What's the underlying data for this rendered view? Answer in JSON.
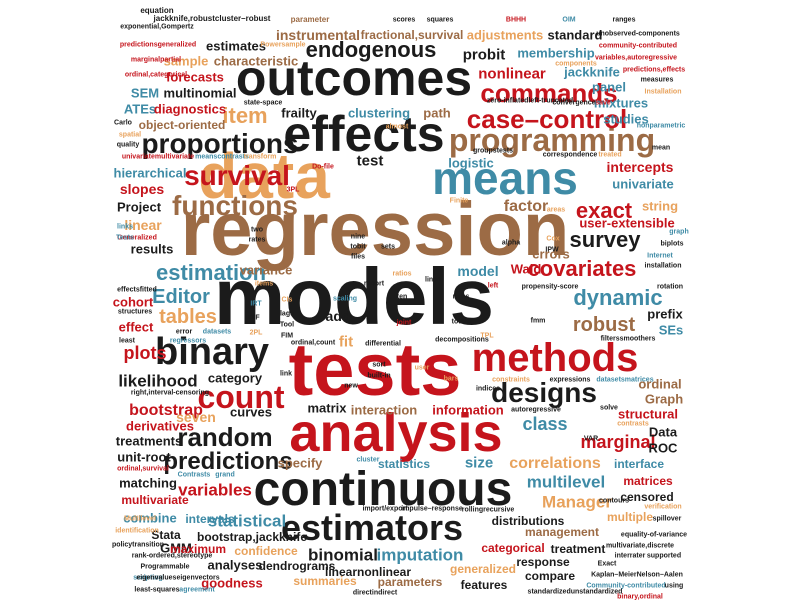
{
  "colors": {
    "black": "#1b1b1b",
    "red": "#c5141c",
    "orange": "#e8a25c",
    "brown": "#9c6b45",
    "teal": "#3f8ba6"
  },
  "words": [
    {
      "text": "models",
      "color": "black"
    },
    {
      "text": "regression",
      "color": "brown"
    },
    {
      "text": "tests",
      "color": "red"
    },
    {
      "text": "data",
      "color": "orange"
    },
    {
      "text": "outcomes",
      "color": "black"
    },
    {
      "text": "effects",
      "color": "black"
    },
    {
      "text": "analysis",
      "color": "red"
    },
    {
      "text": "continuous",
      "color": "black"
    },
    {
      "text": "means",
      "color": "teal"
    },
    {
      "text": "methods",
      "color": "red"
    },
    {
      "text": "programming",
      "color": "brown"
    },
    {
      "text": "binary",
      "color": "black"
    },
    {
      "text": "estimators",
      "color": "black"
    },
    {
      "text": "count",
      "color": "red"
    },
    {
      "text": "endogenous",
      "color": "black"
    },
    {
      "text": "commands",
      "color": "red"
    },
    {
      "text": "proportions",
      "color": "black"
    },
    {
      "text": "survival",
      "color": "red"
    },
    {
      "text": "functions",
      "color": "brown"
    },
    {
      "text": "case–control",
      "color": "red"
    },
    {
      "text": "designs",
      "color": "black"
    },
    {
      "text": "random",
      "color": "black"
    },
    {
      "text": "predictions",
      "color": "black"
    },
    {
      "text": "covariates",
      "color": "red"
    },
    {
      "text": "estimation",
      "color": "teal"
    },
    {
      "text": "survey",
      "color": "black"
    },
    {
      "text": "exact",
      "color": "red"
    },
    {
      "text": "dynamic",
      "color": "teal"
    },
    {
      "text": "robust",
      "color": "brown"
    },
    {
      "text": "Editor",
      "color": "teal"
    },
    {
      "text": "tables",
      "color": "orange"
    },
    {
      "text": "variables",
      "color": "red"
    },
    {
      "text": "statistical",
      "color": "teal"
    },
    {
      "text": "correlations",
      "color": "orange"
    },
    {
      "text": "multilevel",
      "color": "teal"
    },
    {
      "text": "Manager",
      "color": "orange"
    },
    {
      "text": "marginal",
      "color": "red"
    },
    {
      "text": "imputation",
      "color": "teal"
    },
    {
      "text": "binomial",
      "color": "black"
    },
    {
      "text": "bootstrap",
      "color": "red"
    },
    {
      "text": "likelihood",
      "color": "black"
    },
    {
      "text": "plots",
      "color": "red"
    },
    {
      "text": "class",
      "color": "teal"
    },
    {
      "text": "item",
      "color": "orange"
    },
    {
      "text": "nonlinear",
      "color": "red"
    },
    {
      "text": "probit",
      "color": "black"
    },
    {
      "text": "instrumental",
      "color": "brown"
    },
    {
      "text": "characteristic",
      "color": "brown"
    },
    {
      "text": "sample",
      "color": "orange"
    },
    {
      "text": "forecasts",
      "color": "red"
    },
    {
      "text": "fractional,survival",
      "color": "brown"
    },
    {
      "text": "adjustments",
      "color": "orange"
    },
    {
      "text": "standard",
      "color": "black"
    },
    {
      "text": "estimates",
      "color": "black"
    },
    {
      "text": "multinomial",
      "color": "black"
    },
    {
      "text": "membership",
      "color": "teal"
    },
    {
      "text": "jackknife",
      "color": "teal"
    },
    {
      "text": "panel",
      "color": "teal"
    },
    {
      "text": "mixtures",
      "color": "teal"
    },
    {
      "text": "studies",
      "color": "teal"
    },
    {
      "text": "SEM",
      "color": "teal"
    },
    {
      "text": "ATEs",
      "color": "teal"
    },
    {
      "text": "diagnostics",
      "color": "red"
    },
    {
      "text": "object-oriented",
      "color": "brown"
    },
    {
      "text": "frailty",
      "color": "black"
    },
    {
      "text": "clustering",
      "color": "teal"
    },
    {
      "text": "path",
      "color": "brown"
    },
    {
      "text": "logistic",
      "color": "teal"
    },
    {
      "text": "test",
      "color": "black"
    },
    {
      "text": "intercepts",
      "color": "red"
    },
    {
      "text": "univariate",
      "color": "teal"
    },
    {
      "text": "hierarchical",
      "color": "teal"
    },
    {
      "text": "slopes",
      "color": "red"
    },
    {
      "text": "Project",
      "color": "black"
    },
    {
      "text": "linear",
      "color": "orange"
    },
    {
      "text": "factor",
      "color": "brown"
    },
    {
      "text": "string",
      "color": "orange"
    },
    {
      "text": "user-extensible",
      "color": "red"
    },
    {
      "text": "results",
      "color": "black"
    },
    {
      "text": "errors",
      "color": "brown"
    },
    {
      "text": "variance",
      "color": "brown"
    },
    {
      "text": "model",
      "color": "teal"
    },
    {
      "text": "Wald",
      "color": "red"
    },
    {
      "text": "cohort",
      "color": "red"
    },
    {
      "text": "effect",
      "color": "red"
    },
    {
      "text": "add",
      "color": "black"
    },
    {
      "text": "fit",
      "color": "orange"
    },
    {
      "text": "prefix",
      "color": "black"
    },
    {
      "text": "SEs",
      "color": "teal"
    },
    {
      "text": "category",
      "color": "black"
    },
    {
      "text": "matrix",
      "color": "black"
    },
    {
      "text": "interaction",
      "color": "brown"
    },
    {
      "text": "information",
      "color": "red"
    },
    {
      "text": "ordinal",
      "color": "brown"
    },
    {
      "text": "Graph",
      "color": "brown"
    },
    {
      "text": "structural",
      "color": "red"
    },
    {
      "text": "Data",
      "color": "black"
    },
    {
      "text": "ROC",
      "color": "black"
    },
    {
      "text": "curves",
      "color": "black"
    },
    {
      "text": "seven",
      "color": "orange"
    },
    {
      "text": "derivatives",
      "color": "red"
    },
    {
      "text": "treatments",
      "color": "black"
    },
    {
      "text": "unit-root",
      "color": "black"
    },
    {
      "text": "specify",
      "color": "brown"
    },
    {
      "text": "statistics",
      "color": "teal"
    },
    {
      "text": "size",
      "color": "teal"
    },
    {
      "text": "matching",
      "color": "black"
    },
    {
      "text": "multivariate",
      "color": "red"
    },
    {
      "text": "combine",
      "color": "teal"
    },
    {
      "text": "Stata",
      "color": "black"
    },
    {
      "text": "GMM",
      "color": "black"
    },
    {
      "text": "intervals",
      "color": "teal"
    },
    {
      "text": "bootstrap,jackknife",
      "color": "black"
    },
    {
      "text": "maximum",
      "color": "red"
    },
    {
      "text": "confidence",
      "color": "orange"
    },
    {
      "text": "analyses",
      "color": "black"
    },
    {
      "text": "dendrograms",
      "color": "black"
    },
    {
      "text": "goodness",
      "color": "red"
    },
    {
      "text": "summaries",
      "color": "orange"
    },
    {
      "text": "linearnonlinear",
      "color": "black"
    },
    {
      "text": "parameters",
      "color": "brown"
    },
    {
      "text": "generalized",
      "color": "orange"
    },
    {
      "text": "features",
      "color": "black"
    },
    {
      "text": "compare",
      "color": "black"
    },
    {
      "text": "response",
      "color": "black"
    },
    {
      "text": "categorical",
      "color": "red"
    },
    {
      "text": "treatment",
      "color": "black"
    },
    {
      "text": "management",
      "color": "brown"
    },
    {
      "text": "multiple",
      "color": "orange"
    },
    {
      "text": "distributions",
      "color": "black"
    },
    {
      "text": "matrices",
      "color": "red"
    },
    {
      "text": "censored",
      "color": "black"
    },
    {
      "text": "interface",
      "color": "teal"
    },
    {
      "text": "equation",
      "color": "black"
    },
    {
      "text": "jackknife,robustcluster–robust",
      "color": "black"
    },
    {
      "text": "exponential,Gompertz",
      "color": "black"
    },
    {
      "text": "predictionsgeneralized",
      "color": "red"
    },
    {
      "text": "marginalpartial",
      "color": "red"
    },
    {
      "text": "ordinal,categorical",
      "color": "red"
    },
    {
      "text": "parameter",
      "color": "brown"
    },
    {
      "text": "Powersample",
      "color": "orange"
    },
    {
      "text": "scores",
      "color": "black"
    },
    {
      "text": "squares",
      "color": "black"
    },
    {
      "text": "BHHH",
      "color": "red"
    },
    {
      "text": "OIM",
      "color": "teal"
    },
    {
      "text": "ranges",
      "color": "black"
    },
    {
      "text": "unobserved-components",
      "color": "black"
    },
    {
      "text": "community-contributed",
      "color": "red"
    },
    {
      "text": "variables,autoregressive",
      "color": "red"
    },
    {
      "text": "predictions,effects",
      "color": "red"
    },
    {
      "text": "measures",
      "color": "black"
    },
    {
      "text": "Installation",
      "color": "orange"
    },
    {
      "text": "components",
      "color": "orange"
    },
    {
      "text": "state-space",
      "color": "black"
    },
    {
      "text": "zero-inflatedleft-truncated",
      "color": "black"
    },
    {
      "text": "convergence",
      "color": "black"
    },
    {
      "text": "save",
      "color": "red"
    },
    {
      "text": "Carlo",
      "color": "black"
    },
    {
      "text": "quality",
      "color": "black"
    },
    {
      "text": "spatial",
      "color": "orange"
    },
    {
      "text": "univariatemultivariate",
      "color": "red"
    },
    {
      "text": "meanscontrasts",
      "color": "teal"
    },
    {
      "text": "transform",
      "color": "orange"
    },
    {
      "text": "Do-file",
      "color": "red"
    },
    {
      "text": "almost",
      "color": "orange"
    },
    {
      "text": "groupstests",
      "color": "black"
    },
    {
      "text": "correspondence",
      "color": "black"
    },
    {
      "text": "treated",
      "color": "orange"
    },
    {
      "text": "nonparametric",
      "color": "teal"
    },
    {
      "text": "mean",
      "color": "black"
    },
    {
      "text": "3PL",
      "color": "red"
    },
    {
      "text": "Finite",
      "color": "orange"
    },
    {
      "text": "areas",
      "color": "orange"
    },
    {
      "text": "Generalized",
      "color": "red"
    },
    {
      "text": "Tests",
      "color": "teal"
    },
    {
      "text": "links",
      "color": "teal"
    },
    {
      "text": "two",
      "color": "black"
    },
    {
      "text": "rates",
      "color": "black"
    },
    {
      "text": "nine",
      "color": "black"
    },
    {
      "text": "tobit",
      "color": "black"
    },
    {
      "text": "files",
      "color": "black"
    },
    {
      "text": "sets",
      "color": "black"
    },
    {
      "text": "alpha",
      "color": "black"
    },
    {
      "text": "Cox",
      "color": "orange"
    },
    {
      "text": "IPW",
      "color": "black"
    },
    {
      "text": "graph",
      "color": "teal"
    },
    {
      "text": "biplots",
      "color": "black"
    },
    {
      "text": "Internet",
      "color": "teal"
    },
    {
      "text": "installation",
      "color": "black"
    },
    {
      "text": "ratios",
      "color": "orange"
    },
    {
      "text": "report",
      "color": "black"
    },
    {
      "text": "left",
      "color": "red"
    },
    {
      "text": "propensity-score",
      "color": "black"
    },
    {
      "text": "rotation",
      "color": "black"
    },
    {
      "text": "items",
      "color": "orange"
    },
    {
      "text": "effectsfitted",
      "color": "black"
    },
    {
      "text": "IRT",
      "color": "teal"
    },
    {
      "text": "DIF",
      "color": "black"
    },
    {
      "text": "2PL",
      "color": "orange"
    },
    {
      "text": "CIs",
      "color": "orange"
    },
    {
      "text": "lags",
      "color": "black"
    },
    {
      "text": "Tool",
      "color": "black"
    },
    {
      "text": "FIM",
      "color": "black"
    },
    {
      "text": "scaling",
      "color": "teal"
    },
    {
      "text": "rules",
      "color": "black"
    },
    {
      "text": "ten",
      "color": "black"
    },
    {
      "text": "joint",
      "color": "red"
    },
    {
      "text": "totals",
      "color": "black"
    },
    {
      "text": "fmm",
      "color": "black"
    },
    {
      "text": "lines",
      "color": "black"
    },
    {
      "text": "decompositions",
      "color": "black"
    },
    {
      "text": "TPL",
      "color": "orange"
    },
    {
      "text": "filterssmoothers",
      "color": "black"
    },
    {
      "text": "structures",
      "color": "black"
    },
    {
      "text": "error",
      "color": "black"
    },
    {
      "text": "datasets",
      "color": "teal"
    },
    {
      "text": "least",
      "color": "black"
    },
    {
      "text": "regressors",
      "color": "teal"
    },
    {
      "text": "ordinal,count",
      "color": "black"
    },
    {
      "text": "differential",
      "color": "black"
    },
    {
      "text": "link",
      "color": "black"
    },
    {
      "text": "sort",
      "color": "black"
    },
    {
      "text": "new",
      "color": "black"
    },
    {
      "text": "built-in",
      "color": "black"
    },
    {
      "text": "user",
      "color": "orange"
    },
    {
      "text": "bars",
      "color": "orange"
    },
    {
      "text": "indices",
      "color": "black"
    },
    {
      "text": "constraints",
      "color": "orange"
    },
    {
      "text": "expressions",
      "color": "black"
    },
    {
      "text": "datasetsmatrices",
      "color": "teal"
    },
    {
      "text": "right,interval-censoring",
      "color": "black"
    },
    {
      "text": "autoregressive",
      "color": "black"
    },
    {
      "text": "solve",
      "color": "black"
    },
    {
      "text": "VAR",
      "color": "black"
    },
    {
      "text": "contrasts",
      "color": "orange"
    },
    {
      "text": "ordinal,survival",
      "color": "red"
    },
    {
      "text": "grand",
      "color": "teal"
    },
    {
      "text": "Contrasts",
      "color": "teal"
    },
    {
      "text": "cluster",
      "color": "teal"
    },
    {
      "text": "rollingrecursive",
      "color": "black"
    },
    {
      "text": "impulse–response",
      "color": "black"
    },
    {
      "text": "import/export",
      "color": "black"
    },
    {
      "text": "contours",
      "color": "black"
    },
    {
      "text": "verification",
      "color": "orange"
    },
    {
      "text": "spillover",
      "color": "black"
    },
    {
      "text": "Multilevel",
      "color": "orange"
    },
    {
      "text": "identification",
      "color": "orange"
    },
    {
      "text": "policytransition",
      "color": "black"
    },
    {
      "text": "rank-ordered,stereotype",
      "color": "black"
    },
    {
      "text": "Programmable",
      "color": "black"
    },
    {
      "text": "scripting",
      "color": "teal"
    },
    {
      "text": "eigenvalueseigenvectors",
      "color": "black"
    },
    {
      "text": "least-squares",
      "color": "black"
    },
    {
      "text": "agreement",
      "color": "teal"
    },
    {
      "text": "directindirect",
      "color": "black"
    },
    {
      "text": "standardizedunstandardized",
      "color": "black"
    },
    {
      "text": "equality-of-variance",
      "color": "black"
    },
    {
      "text": "multivariate,discrete",
      "color": "black"
    },
    {
      "text": "interrater",
      "color": "black"
    },
    {
      "text": "supported",
      "color": "black"
    },
    {
      "text": "Exact",
      "color": "black"
    },
    {
      "text": "Kaplan–MeierNelson–Aalen",
      "color": "black"
    },
    {
      "text": "Community-contributed",
      "color": "teal"
    },
    {
      "text": "using",
      "color": "black"
    },
    {
      "text": "binary,ordinal",
      "color": "red"
    }
  ]
}
